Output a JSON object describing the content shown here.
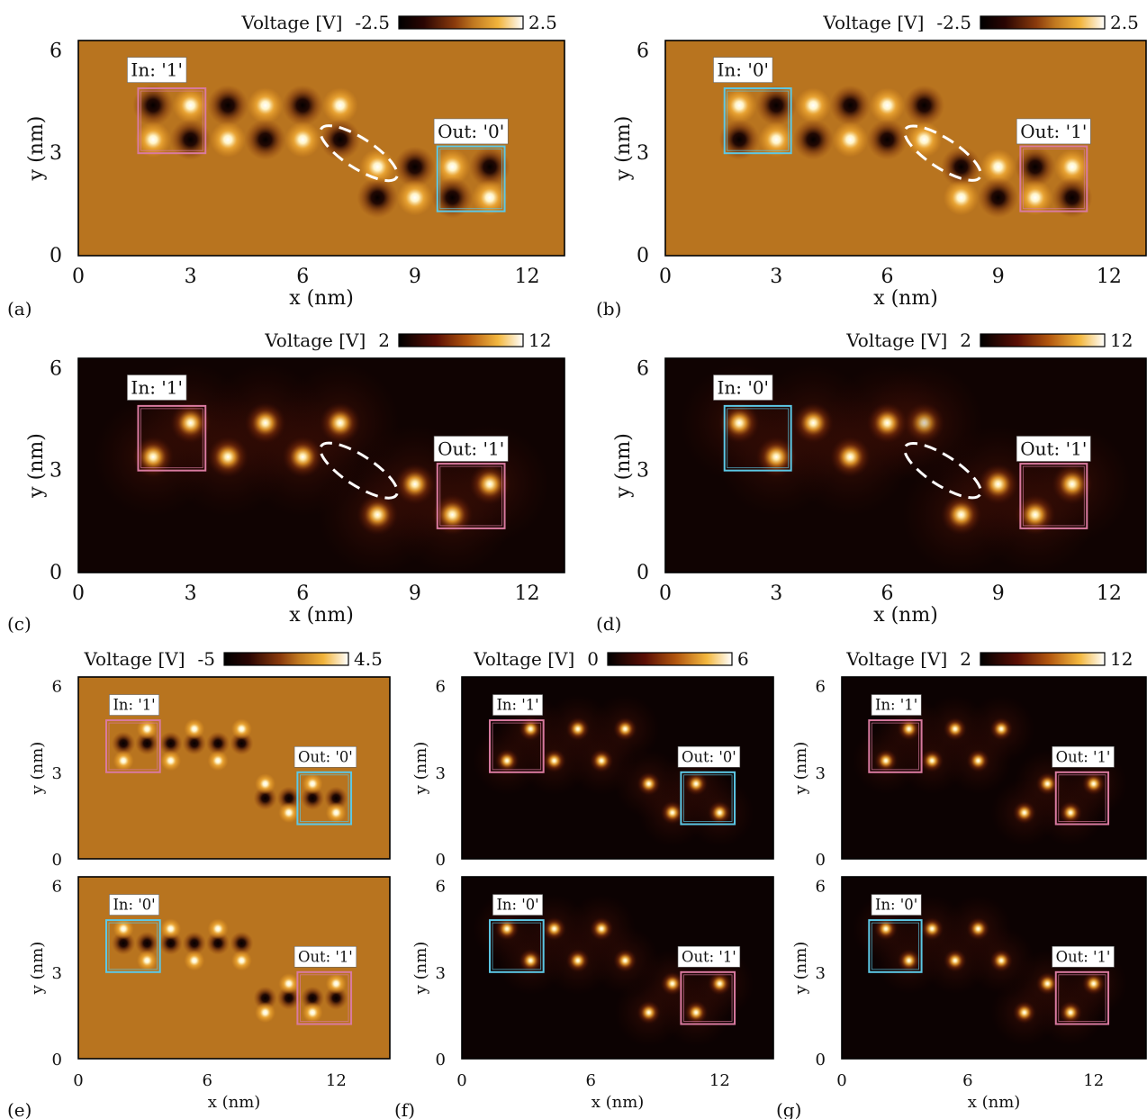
{
  "chart_data": [
    {
      "type": "heatmap",
      "panel": "a",
      "panel_label": "(a)",
      "xlabel": "x (nm)",
      "ylabel": "y (nm)",
      "xlim": [
        0,
        13
      ],
      "ylim": [
        0,
        6.3
      ],
      "xticks": [
        "0",
        "3",
        "6",
        "9",
        "12"
      ],
      "yticks": [
        "0",
        "3",
        "6"
      ],
      "colorbar": {
        "label": "Voltage [V]",
        "min": "-2.5",
        "max": "2.5"
      },
      "colormap": "diverging",
      "background": "#b8741f",
      "spots": [
        [
          2,
          4.4,
          -1
        ],
        [
          3,
          4.4,
          1
        ],
        [
          2,
          3.4,
          1
        ],
        [
          3,
          3.4,
          -1
        ],
        [
          4,
          4.4,
          -1
        ],
        [
          5,
          4.4,
          1
        ],
        [
          6,
          4.4,
          -1
        ],
        [
          7,
          4.4,
          1
        ],
        [
          4,
          3.4,
          1
        ],
        [
          5,
          3.4,
          -1
        ],
        [
          6,
          3.4,
          1
        ],
        [
          7,
          3.4,
          -1
        ],
        [
          8,
          2.6,
          1
        ],
        [
          9,
          2.6,
          -1
        ],
        [
          8,
          1.7,
          -1
        ],
        [
          9,
          1.7,
          1
        ],
        [
          10,
          2.6,
          1
        ],
        [
          11,
          2.6,
          -1
        ],
        [
          10,
          1.7,
          -1
        ],
        [
          11,
          1.7,
          1
        ]
      ],
      "annotations": [
        {
          "text": "In: '1'",
          "box": [
            1.6,
            3.0,
            3.4,
            4.9
          ],
          "color": "#d97aa0",
          "label_at": [
            2.1,
            5.4
          ]
        },
        {
          "text": "Out: '0'",
          "box": [
            9.6,
            1.3,
            11.4,
            3.2
          ],
          "color": "#5cc8e6",
          "label_at": [
            10.5,
            3.6
          ]
        }
      ],
      "ellipse": {
        "cx": 7.5,
        "cy": 3.0,
        "rx": 1.2,
        "ry": 0.4,
        "angle": -33
      }
    },
    {
      "type": "heatmap",
      "panel": "b",
      "panel_label": "(b)",
      "xlabel": "x (nm)",
      "ylabel": "y (nm)",
      "xlim": [
        0,
        13
      ],
      "ylim": [
        0,
        6.3
      ],
      "xticks": [
        "0",
        "3",
        "6",
        "9",
        "12"
      ],
      "yticks": [
        "0",
        "3",
        "6"
      ],
      "colorbar": {
        "label": "Voltage [V]",
        "min": "-2.5",
        "max": "2.5"
      },
      "colormap": "diverging",
      "background": "#b8741f",
      "spots": [
        [
          2,
          4.4,
          1
        ],
        [
          3,
          4.4,
          -1
        ],
        [
          2,
          3.4,
          -1
        ],
        [
          3,
          3.4,
          1
        ],
        [
          4,
          4.4,
          1
        ],
        [
          5,
          4.4,
          -1
        ],
        [
          6,
          4.4,
          1
        ],
        [
          7,
          4.4,
          -1
        ],
        [
          4,
          3.4,
          -1
        ],
        [
          5,
          3.4,
          1
        ],
        [
          6,
          3.4,
          -1
        ],
        [
          7,
          3.4,
          1
        ],
        [
          8,
          2.6,
          -1
        ],
        [
          9,
          2.6,
          1
        ],
        [
          8,
          1.7,
          1
        ],
        [
          9,
          1.7,
          -1
        ],
        [
          10,
          2.6,
          -1
        ],
        [
          11,
          2.6,
          1
        ],
        [
          10,
          1.7,
          1
        ],
        [
          11,
          1.7,
          -1
        ]
      ],
      "annotations": [
        {
          "text": "In: '0'",
          "box": [
            1.6,
            3.0,
            3.4,
            4.9
          ],
          "color": "#5cc8e6",
          "label_at": [
            2.1,
            5.4
          ]
        },
        {
          "text": "Out: '1'",
          "box": [
            9.6,
            1.3,
            11.4,
            3.2
          ],
          "color": "#d97aa0",
          "label_at": [
            10.5,
            3.6
          ]
        }
      ],
      "ellipse": {
        "cx": 7.5,
        "cy": 3.0,
        "rx": 1.2,
        "ry": 0.4,
        "angle": -33
      }
    },
    {
      "type": "heatmap",
      "panel": "c",
      "panel_label": "(c)",
      "xlabel": "x (nm)",
      "ylabel": "y (nm)",
      "xlim": [
        0,
        13
      ],
      "ylim": [
        0,
        6.3
      ],
      "xticks": [
        "0",
        "3",
        "6",
        "9",
        "12"
      ],
      "yticks": [
        "0",
        "3",
        "6"
      ],
      "colorbar": {
        "label": "Voltage [V]",
        "min": "2",
        "max": "12"
      },
      "colormap": "afmhot",
      "background": "#100302",
      "spots": [
        [
          3,
          4.4,
          1
        ],
        [
          2,
          3.4,
          1
        ],
        [
          5,
          4.4,
          1
        ],
        [
          7,
          4.4,
          1
        ],
        [
          4,
          3.4,
          1
        ],
        [
          6,
          3.4,
          1
        ],
        [
          9,
          2.6,
          1
        ],
        [
          8,
          1.7,
          1
        ],
        [
          11,
          2.6,
          1
        ],
        [
          10,
          1.7,
          1
        ]
      ],
      "annotations": [
        {
          "text": "In: '1'",
          "box": [
            1.6,
            3.0,
            3.4,
            4.9
          ],
          "color": "#d97aa0",
          "label_at": [
            2.1,
            5.4
          ]
        },
        {
          "text": "Out: '1'",
          "box": [
            9.6,
            1.3,
            11.4,
            3.2
          ],
          "color": "#d97aa0",
          "label_at": [
            10.5,
            3.6
          ]
        }
      ],
      "ellipse": {
        "cx": 7.5,
        "cy": 3.0,
        "rx": 1.2,
        "ry": 0.4,
        "angle": -33
      }
    },
    {
      "type": "heatmap",
      "panel": "d",
      "panel_label": "(d)",
      "xlabel": "x (nm)",
      "ylabel": "y (nm)",
      "xlim": [
        0,
        13
      ],
      "ylim": [
        0,
        6.3
      ],
      "xticks": [
        "0",
        "3",
        "6",
        "9",
        "12"
      ],
      "yticks": [
        "0",
        "3",
        "6"
      ],
      "colorbar": {
        "label": "Voltage [V]",
        "min": "2",
        "max": "12"
      },
      "colormap": "afmhot",
      "background": "#100302",
      "spots": [
        [
          2,
          4.4,
          1
        ],
        [
          3,
          3.4,
          1
        ],
        [
          4,
          4.4,
          1
        ],
        [
          6,
          4.4,
          1
        ],
        [
          7,
          4.4,
          0.5
        ],
        [
          5,
          3.4,
          1
        ],
        [
          9,
          2.6,
          1
        ],
        [
          8,
          1.7,
          1
        ],
        [
          11,
          2.6,
          1
        ],
        [
          10,
          1.7,
          1
        ]
      ],
      "annotations": [
        {
          "text": "In: '0'",
          "box": [
            1.6,
            3.0,
            3.4,
            4.9
          ],
          "color": "#5cc8e6",
          "label_at": [
            2.1,
            5.4
          ]
        },
        {
          "text": "Out: '1'",
          "box": [
            9.6,
            1.3,
            11.4,
            3.2
          ],
          "color": "#d97aa0",
          "label_at": [
            10.5,
            3.6
          ]
        }
      ],
      "ellipse": {
        "cx": 7.5,
        "cy": 3.0,
        "rx": 1.2,
        "ry": 0.4,
        "angle": -33
      }
    },
    {
      "type": "heatmap",
      "panel": "e-top",
      "panel_label": "(e)",
      "xlabel": "",
      "ylabel": "y (nm)",
      "xlim": [
        0,
        14.5
      ],
      "ylim": [
        0,
        6.3
      ],
      "xticks": [],
      "yticks": [
        "0",
        "3",
        "6"
      ],
      "colorbar": {
        "label": "Voltage [V]",
        "min": "-5",
        "max": "4.5"
      },
      "colormap": "diverging",
      "background": "#b8741f",
      "spots": [
        [
          2.1,
          4.0,
          -1
        ],
        [
          3.2,
          4.0,
          -1
        ],
        [
          2.1,
          3.4,
          1
        ],
        [
          3.2,
          4.5,
          1
        ],
        [
          4.3,
          4.0,
          -1
        ],
        [
          5.4,
          4.0,
          -1
        ],
        [
          6.5,
          4.0,
          -1
        ],
        [
          7.6,
          4.0,
          -1
        ],
        [
          4.3,
          3.4,
          1
        ],
        [
          5.4,
          4.5,
          1
        ],
        [
          6.5,
          3.4,
          1
        ],
        [
          7.6,
          4.5,
          1
        ],
        [
          8.7,
          2.1,
          -1
        ],
        [
          9.8,
          2.1,
          -1
        ],
        [
          8.7,
          2.6,
          1
        ],
        [
          9.8,
          1.6,
          1
        ],
        [
          10.9,
          2.1,
          -1
        ],
        [
          12.0,
          2.1,
          -1
        ],
        [
          10.9,
          2.6,
          1
        ],
        [
          12.0,
          1.6,
          1
        ]
      ],
      "annotations": [
        {
          "text": "In: '1'",
          "box": [
            1.3,
            3.0,
            3.8,
            4.8
          ],
          "color": "#d97aa0",
          "label_at": [
            2.6,
            5.3
          ]
        },
        {
          "text": "Out: '0'",
          "box": [
            10.2,
            1.2,
            12.7,
            3.0
          ],
          "color": "#5cc8e6",
          "label_at": [
            11.5,
            3.5
          ]
        }
      ]
    },
    {
      "type": "heatmap",
      "panel": "e-bottom",
      "panel_label": "",
      "xlabel": "x (nm)",
      "ylabel": "y (nm)",
      "xlim": [
        0,
        14.5
      ],
      "ylim": [
        0,
        6.3
      ],
      "xticks": [
        "0",
        "6",
        "12"
      ],
      "yticks": [
        "0",
        "3",
        "6"
      ],
      "colormap": "diverging",
      "background": "#b8741f",
      "spots": [
        [
          2.1,
          4.0,
          -1
        ],
        [
          3.2,
          4.0,
          -1
        ],
        [
          2.1,
          4.5,
          1
        ],
        [
          3.2,
          3.4,
          1
        ],
        [
          4.3,
          4.0,
          -1
        ],
        [
          5.4,
          4.0,
          -1
        ],
        [
          6.5,
          4.0,
          -1
        ],
        [
          7.6,
          4.0,
          -1
        ],
        [
          4.3,
          4.5,
          1
        ],
        [
          5.4,
          3.4,
          1
        ],
        [
          6.5,
          4.5,
          1
        ],
        [
          7.6,
          3.4,
          1
        ],
        [
          8.7,
          2.1,
          -1
        ],
        [
          9.8,
          2.1,
          -1
        ],
        [
          8.7,
          1.6,
          1
        ],
        [
          9.8,
          2.6,
          1
        ],
        [
          10.9,
          2.1,
          -1
        ],
        [
          12.0,
          2.1,
          -1
        ],
        [
          10.9,
          1.6,
          1
        ],
        [
          12.0,
          2.6,
          1
        ]
      ],
      "annotations": [
        {
          "text": "In: '0'",
          "box": [
            1.3,
            3.0,
            3.8,
            4.8
          ],
          "color": "#5cc8e6",
          "label_at": [
            2.6,
            5.3
          ]
        },
        {
          "text": "Out: '1'",
          "box": [
            10.2,
            1.2,
            12.7,
            3.0
          ],
          "color": "#d97aa0",
          "label_at": [
            11.5,
            3.5
          ]
        }
      ]
    },
    {
      "type": "heatmap",
      "panel": "f-top",
      "panel_label": "(f)",
      "xlabel": "",
      "ylabel": "y (nm)",
      "xlim": [
        0,
        14.5
      ],
      "ylim": [
        0,
        6.3
      ],
      "xticks": [],
      "yticks": [
        "0",
        "3",
        "6"
      ],
      "colorbar": {
        "label": "Voltage [V]",
        "min": "0",
        "max": "6"
      },
      "colormap": "afmhot",
      "background": "#0c0202",
      "spots": [
        [
          2.1,
          3.4,
          1
        ],
        [
          3.2,
          4.5,
          1
        ],
        [
          4.3,
          3.4,
          1
        ],
        [
          5.4,
          4.5,
          1
        ],
        [
          6.5,
          3.4,
          1
        ],
        [
          7.6,
          4.5,
          1
        ],
        [
          8.7,
          2.6,
          1
        ],
        [
          9.8,
          1.6,
          1
        ],
        [
          10.9,
          2.6,
          1
        ],
        [
          12.0,
          1.6,
          1
        ]
      ],
      "annotations": [
        {
          "text": "In: '1'",
          "box": [
            1.3,
            3.0,
            3.8,
            4.8
          ],
          "color": "#d97aa0",
          "label_at": [
            2.6,
            5.3
          ]
        },
        {
          "text": "Out: '0'",
          "box": [
            10.2,
            1.2,
            12.7,
            3.0
          ],
          "color": "#5cc8e6",
          "label_at": [
            11.5,
            3.5
          ]
        }
      ]
    },
    {
      "type": "heatmap",
      "panel": "f-bottom",
      "panel_label": "",
      "xlabel": "x (nm)",
      "ylabel": "y (nm)",
      "xlim": [
        0,
        14.5
      ],
      "ylim": [
        0,
        6.3
      ],
      "xticks": [
        "0",
        "6",
        "12"
      ],
      "yticks": [
        "0",
        "3",
        "6"
      ],
      "colormap": "afmhot",
      "background": "#0c0202",
      "spots": [
        [
          2.1,
          4.5,
          1
        ],
        [
          3.2,
          3.4,
          1
        ],
        [
          4.3,
          4.5,
          1
        ],
        [
          5.4,
          3.4,
          1
        ],
        [
          6.5,
          4.5,
          1
        ],
        [
          7.6,
          3.4,
          1
        ],
        [
          8.7,
          1.6,
          1
        ],
        [
          9.8,
          2.6,
          1
        ],
        [
          10.9,
          1.6,
          1
        ],
        [
          12.0,
          2.6,
          1
        ]
      ],
      "annotations": [
        {
          "text": "In: '0'",
          "box": [
            1.3,
            3.0,
            3.8,
            4.8
          ],
          "color": "#5cc8e6",
          "label_at": [
            2.6,
            5.3
          ]
        },
        {
          "text": "Out: '1'",
          "box": [
            10.2,
            1.2,
            12.7,
            3.0
          ],
          "color": "#d97aa0",
          "label_at": [
            11.5,
            3.5
          ]
        }
      ]
    },
    {
      "type": "heatmap",
      "panel": "g-top",
      "panel_label": "(g)",
      "xlabel": "",
      "ylabel": "y (nm)",
      "xlim": [
        0,
        14.5
      ],
      "ylim": [
        0,
        6.3
      ],
      "xticks": [],
      "yticks": [
        "0",
        "3",
        "6"
      ],
      "colorbar": {
        "label": "Voltage [V]",
        "min": "2",
        "max": "12"
      },
      "colormap": "afmhot",
      "background": "#0c0202",
      "spots": [
        [
          2.1,
          3.4,
          1
        ],
        [
          3.2,
          4.5,
          1
        ],
        [
          4.3,
          3.4,
          1
        ],
        [
          5.4,
          4.5,
          1
        ],
        [
          6.5,
          3.4,
          1
        ],
        [
          7.6,
          4.5,
          1
        ],
        [
          8.7,
          1.6,
          1
        ],
        [
          9.8,
          2.6,
          1
        ],
        [
          10.9,
          1.6,
          1
        ],
        [
          12.0,
          2.6,
          1
        ]
      ],
      "annotations": [
        {
          "text": "In: '1'",
          "box": [
            1.3,
            3.0,
            3.8,
            4.8
          ],
          "color": "#d97aa0",
          "label_at": [
            2.6,
            5.3
          ]
        },
        {
          "text": "Out: '1'",
          "box": [
            10.2,
            1.2,
            12.7,
            3.0
          ],
          "color": "#d97aa0",
          "label_at": [
            11.5,
            3.5
          ]
        }
      ]
    },
    {
      "type": "heatmap",
      "panel": "g-bottom",
      "panel_label": "",
      "xlabel": "x (nm)",
      "ylabel": "y (nm)",
      "xlim": [
        0,
        14.5
      ],
      "ylim": [
        0,
        6.3
      ],
      "xticks": [
        "0",
        "6",
        "12"
      ],
      "yticks": [
        "0",
        "3",
        "6"
      ],
      "colormap": "afmhot",
      "background": "#0c0202",
      "spots": [
        [
          2.1,
          4.5,
          1
        ],
        [
          3.2,
          3.4,
          1
        ],
        [
          4.3,
          4.5,
          1
        ],
        [
          5.4,
          3.4,
          1
        ],
        [
          6.5,
          4.5,
          1
        ],
        [
          7.6,
          3.4,
          1
        ],
        [
          8.7,
          1.6,
          1
        ],
        [
          9.8,
          2.6,
          1
        ],
        [
          10.9,
          1.6,
          1
        ],
        [
          12.0,
          2.6,
          1
        ]
      ],
      "annotations": [
        {
          "text": "In: '0'",
          "box": [
            1.3,
            3.0,
            3.8,
            4.8
          ],
          "color": "#5cc8e6",
          "label_at": [
            2.6,
            5.3
          ]
        },
        {
          "text": "Out: '1'",
          "box": [
            10.2,
            1.2,
            12.7,
            3.0
          ],
          "color": "#d97aa0",
          "label_at": [
            11.5,
            3.5
          ]
        }
      ]
    }
  ]
}
